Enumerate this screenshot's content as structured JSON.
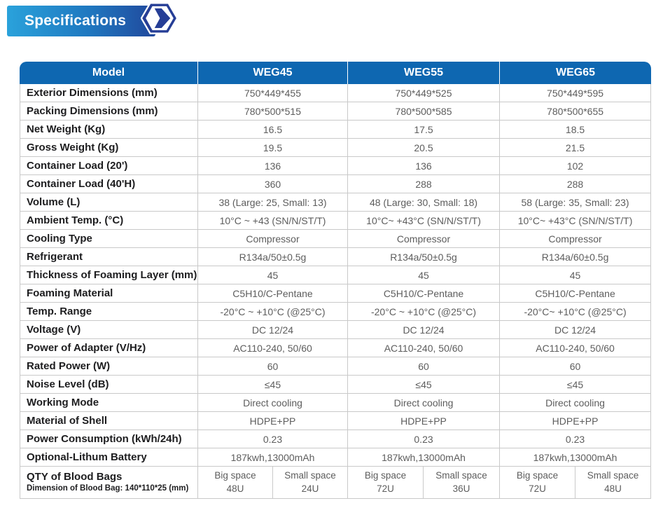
{
  "banner": {
    "title": "Specifications"
  },
  "colors": {
    "header_blue": "#0e67b1",
    "banner_gradient_start": "#2aa2db",
    "banner_gradient_end": "#21489c",
    "hexagon_navy": "#263e96",
    "border_gray": "#c9c9c9",
    "label_text": "#1d1d1f",
    "value_text": "#5d5d5d"
  },
  "table": {
    "header": [
      "Model",
      "WEG45",
      "WEG55",
      "WEG65"
    ],
    "rows": [
      {
        "label": "Exterior Dimensions (mm)",
        "values": [
          "750*449*455",
          "750*449*525",
          "750*449*595"
        ]
      },
      {
        "label": "Packing Dimensions (mm)",
        "values": [
          "780*500*515",
          "780*500*585",
          "780*500*655"
        ]
      },
      {
        "label": "Net Weight (Kg)",
        "values": [
          "16.5",
          "17.5",
          "18.5"
        ]
      },
      {
        "label": "Gross Weight (Kg)",
        "values": [
          "19.5",
          "20.5",
          "21.5"
        ]
      },
      {
        "label": "Container Load (20')",
        "values": [
          "136",
          "136",
          "102"
        ]
      },
      {
        "label": "Container Load (40'H)",
        "values": [
          "360",
          "288",
          "288"
        ]
      },
      {
        "label": "Volume (L)",
        "values": [
          "38 (Large: 25, Small: 13)",
          "48 (Large: 30, Small: 18)",
          "58 (Large: 35, Small: 23)"
        ]
      },
      {
        "label": "Ambient Temp. (°C)",
        "values": [
          "10°C ~ +43 (SN/N/ST/T)",
          "10°C~ +43°C (SN/N/ST/T)",
          "10°C~ +43°C (SN/N/ST/T)"
        ]
      },
      {
        "label": "Cooling Type",
        "values": [
          "Compressor",
          "Compressor",
          "Compressor"
        ]
      },
      {
        "label": "Refrigerant",
        "values": [
          "R134a/50±0.5g",
          "R134a/50±0.5g",
          "R134a/60±0.5g"
        ]
      },
      {
        "label": "Thickness of Foaming Layer (mm)",
        "values": [
          "45",
          "45",
          "45"
        ]
      },
      {
        "label": "Foaming Material",
        "values": [
          "C5H10/C-Pentane",
          "C5H10/C-Pentane",
          "C5H10/C-Pentane"
        ]
      },
      {
        "label": "Temp. Range",
        "values": [
          "-20°C ~ +10°C (@25°C)",
          "-20°C ~ +10°C (@25°C)",
          "-20°C~ +10°C (@25°C)"
        ]
      },
      {
        "label": "Voltage (V)",
        "values": [
          "DC 12/24",
          "DC 12/24",
          "DC 12/24"
        ]
      },
      {
        "label": "Power of Adapter (V/Hz)",
        "values": [
          "AC110-240, 50/60",
          "AC110-240, 50/60",
          "AC110-240, 50/60"
        ]
      },
      {
        "label": "Rated Power (W)",
        "values": [
          "60",
          "60",
          "60"
        ]
      },
      {
        "label": "Noise Level (dB)",
        "values": [
          "≤45",
          "≤45",
          "≤45"
        ]
      },
      {
        "label": "Working Mode",
        "values": [
          "Direct cooling",
          "Direct cooling",
          "Direct cooling"
        ]
      },
      {
        "label": "Material of Shell",
        "values": [
          "HDPE+PP",
          "HDPE+PP",
          "HDPE+PP"
        ]
      },
      {
        "label": "Power Consumption (kWh/24h)",
        "values": [
          "0.23",
          "0.23",
          "0.23"
        ]
      },
      {
        "label": "Optional-Lithum Battery",
        "values": [
          "187kwh,13000mAh",
          "187kwh,13000mAh",
          "187kwh,13000mAh"
        ]
      }
    ],
    "blood_bags_row": {
      "label": "QTY of Blood Bags",
      "sublabel": "Dimension of Blood Bag: 140*110*25 (mm)",
      "big_space_label": "Big space",
      "small_space_label": "Small space",
      "values": [
        {
          "big": "48U",
          "small": "24U"
        },
        {
          "big": "72U",
          "small": "36U"
        },
        {
          "big": "72U",
          "small": "48U"
        }
      ]
    }
  }
}
